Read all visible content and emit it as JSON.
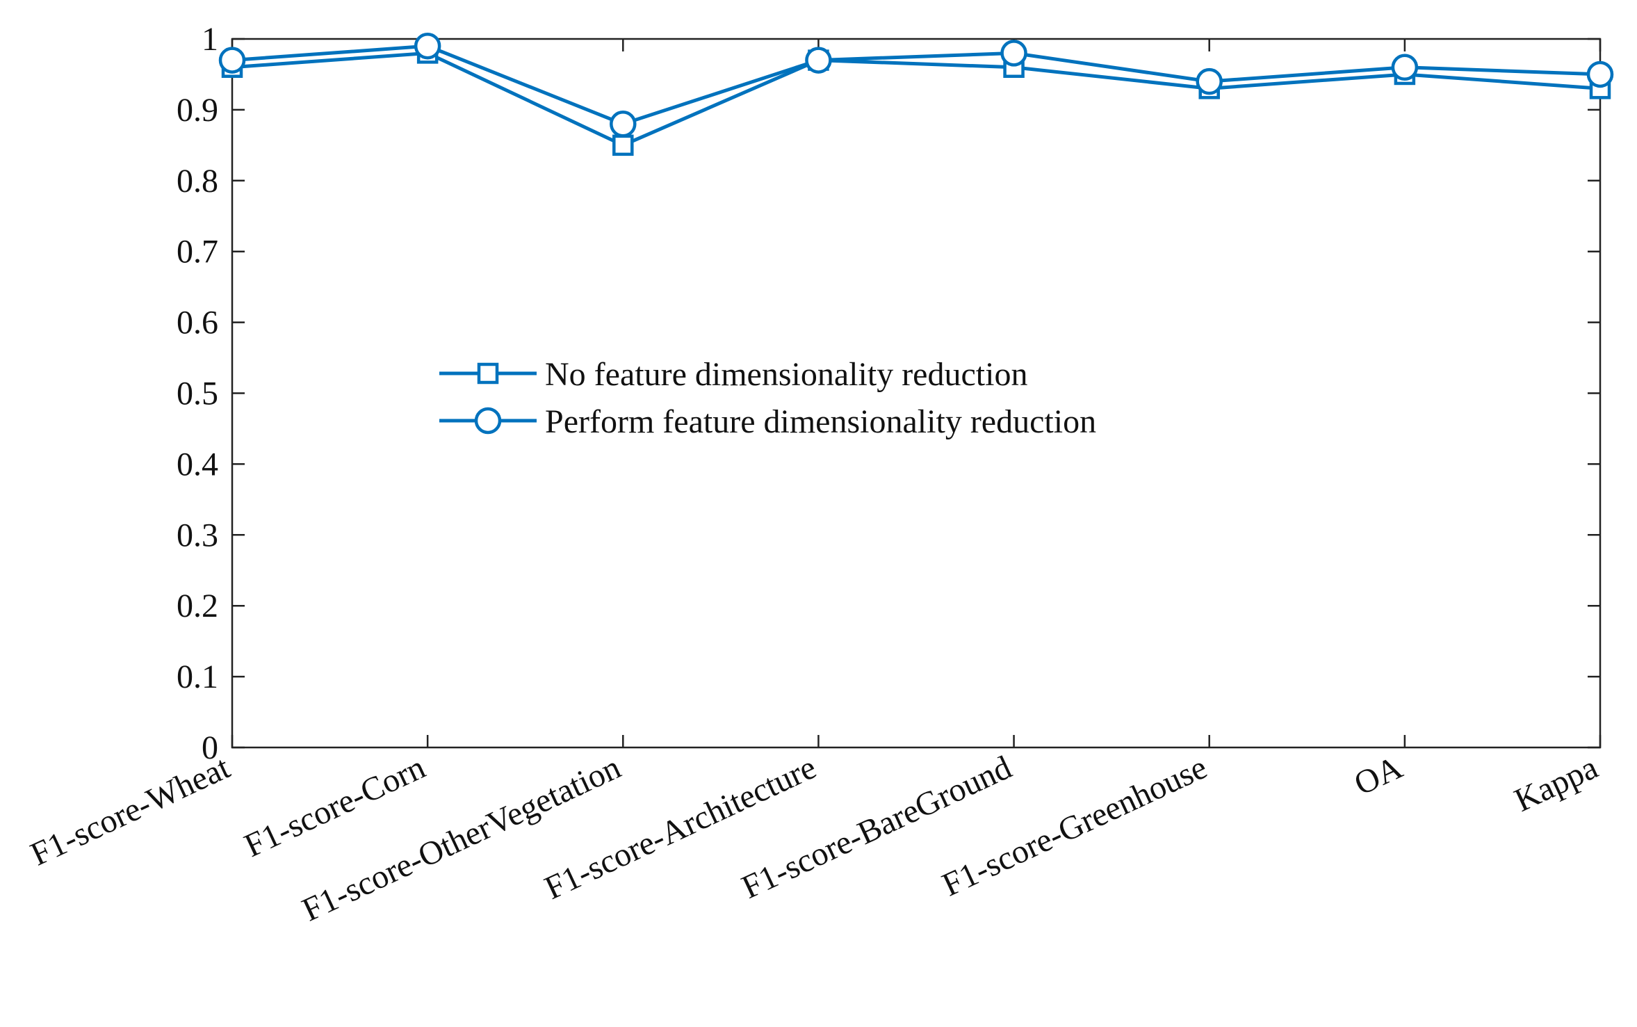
{
  "chart_data": {
    "type": "line",
    "title": "",
    "xlabel": "",
    "ylabel": "",
    "ylim": [
      0,
      1
    ],
    "yticks": [
      "0",
      "0.1",
      "0.2",
      "0.3",
      "0.4",
      "0.5",
      "0.6",
      "0.7",
      "0.8",
      "0.9",
      "1"
    ],
    "categories": [
      "F1-score-Wheat",
      "F1-score-Corn",
      "F1-score-OtherVegetation",
      "F1-score-Architecture",
      "F1-score-BareGround",
      "F1-score-Greenhouse",
      "OA",
      "Kappa"
    ],
    "series": [
      {
        "name": "No feature dimensionality reduction",
        "marker": "square",
        "color": "#0072BD",
        "values": [
          0.96,
          0.98,
          0.85,
          0.97,
          0.96,
          0.93,
          0.95,
          0.93
        ]
      },
      {
        "name": "Perform feature dimensionality reduction",
        "marker": "circle",
        "color": "#0072BD",
        "values": [
          0.97,
          0.99,
          0.88,
          0.97,
          0.98,
          0.94,
          0.96,
          0.95
        ]
      }
    ],
    "grid": false,
    "legend_position": "center"
  }
}
